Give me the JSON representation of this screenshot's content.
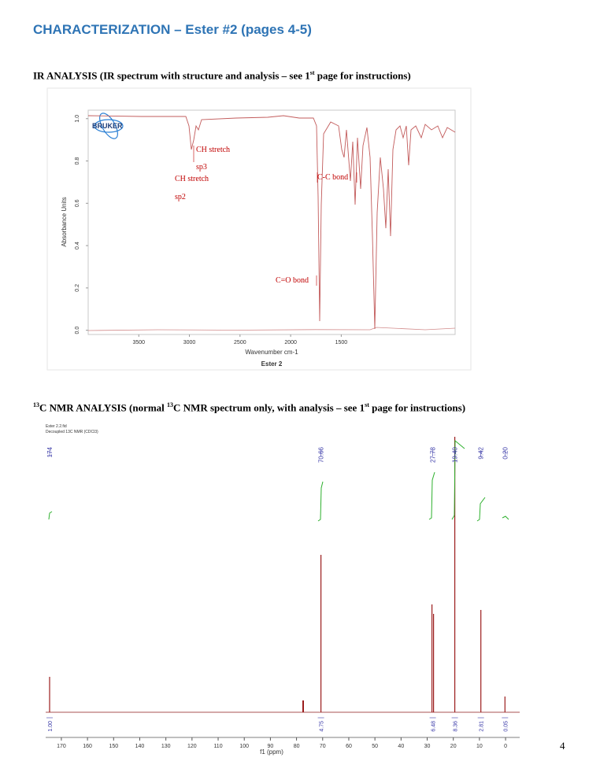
{
  "header": {
    "title": "CHARACTERIZATION – Ester #2 (pages 4-5)"
  },
  "ir": {
    "heading_parts": [
      "IR ANALYSIS (IR spectrum with structure and analysis – see 1",
      "st",
      " page for instructions)"
    ],
    "logo": "BRUKER",
    "xlabel": "Wavenumber cm-1",
    "caption": "Ester 2",
    "ylabel": "Absorbance Units",
    "xlim": [
      4000,
      375
    ],
    "xticks": [
      3500,
      3000,
      2500,
      2000,
      1500
    ],
    "ylim": [
      -0.02,
      1.04
    ],
    "yticks": [
      {
        "value": 0,
        "label": "0.0"
      },
      0.2,
      0.4,
      0.6,
      0.8,
      {
        "value": 1,
        "label": "1.0"
      }
    ],
    "annotations": [
      "CH stretch",
      "sp3",
      "CH stretch",
      "sp2",
      "C-C bond",
      "C=O bond"
    ]
  },
  "nmr": {
    "heading_parts": [
      "13",
      "C NMR ANALYSIS (normal ",
      "13",
      "C NMR spectrum only, with analysis – see 1",
      "st",
      " page for instructions)"
    ],
    "file": "Ester 2.2.fid",
    "experiment": "Decoupled 13C NMR (CDCl3)",
    "peak_labels": [
      "174",
      "70.66",
      "27.78",
      "19.40",
      "9.42",
      "0.20"
    ],
    "integrals": [
      "1.00",
      "4.75",
      "6.48",
      "8.36",
      "2.81",
      "0.05"
    ],
    "xlabel": "f1 (ppm)",
    "xlim": [
      176,
      -5.4
    ],
    "xticks": [
      170,
      160,
      150,
      140,
      130,
      120,
      110,
      100,
      90,
      80,
      70,
      60,
      50,
      40,
      30,
      20,
      10,
      0
    ]
  },
  "page_number": "4"
}
